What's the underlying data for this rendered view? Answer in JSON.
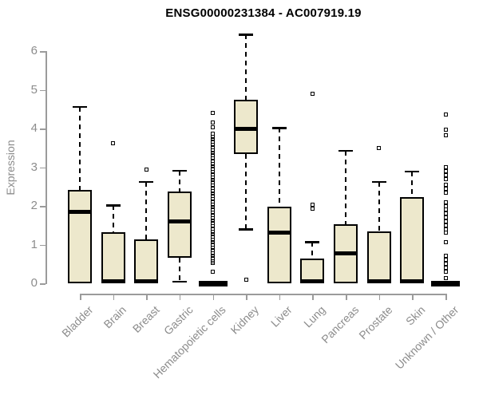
{
  "title": "ENSG00000231384 - AC007919.19",
  "colors": {
    "box_fill": "#EDE8CC",
    "box_border": "#000000",
    "median": "#000000",
    "whisker": "#000000",
    "axis_line": "#9b9b9b",
    "tick_label": "#8c8c8c",
    "title": "#000000",
    "background": "#ffffff"
  },
  "chart_data": {
    "type": "boxplot",
    "title": "ENSG00000231384 - AC007919.19",
    "xlabel": "",
    "ylabel": "Expression",
    "ylim": [
      0,
      6.5
    ],
    "yticks": [
      0,
      1,
      2,
      3,
      4,
      5,
      6
    ],
    "grid": false,
    "legend": false,
    "categories": [
      "Bladder",
      "Brain",
      "Breast",
      "Gastric",
      "Hematopoietic cells",
      "Kidney",
      "Liver",
      "Lung",
      "Pancreas",
      "Prostate",
      "Skin",
      "Unknown / Other"
    ],
    "series": [
      {
        "name": "Bladder",
        "whisker_low": 0,
        "q1": 0,
        "median": 1.84,
        "q3": 2.41,
        "whisker_high": 4.56,
        "outliers": []
      },
      {
        "name": "Brain",
        "whisker_low": 0,
        "q1": 0,
        "median": 0.05,
        "q3": 1.32,
        "whisker_high": 2.02,
        "outliers": [
          3.61
        ]
      },
      {
        "name": "Breast",
        "whisker_low": 0,
        "q1": 0,
        "median": 0.05,
        "q3": 1.13,
        "whisker_high": 2.62,
        "outliers": [
          2.93
        ]
      },
      {
        "name": "Gastric",
        "whisker_low": 0.05,
        "q1": 0.66,
        "median": 1.59,
        "q3": 2.37,
        "whisker_high": 2.91,
        "outliers": []
      },
      {
        "name": "Hematopoietic cells",
        "whisker_low": 0,
        "q1": 0,
        "median": 0,
        "q3": 0,
        "whisker_high": 0,
        "outliers": [
          4.4,
          4.16,
          4.04,
          3.86,
          3.79,
          3.72,
          3.65,
          3.58,
          3.51,
          3.44,
          3.37,
          3.3,
          3.23,
          3.16,
          3.09,
          3.02,
          2.95,
          2.88,
          2.81,
          2.74,
          2.67,
          2.6,
          2.53,
          2.46,
          2.39,
          2.32,
          2.25,
          2.18,
          2.11,
          2.04,
          1.97,
          1.9,
          1.83,
          1.76,
          1.69,
          1.62,
          1.55,
          1.48,
          1.41,
          1.34,
          1.27,
          1.2,
          1.13,
          1.06,
          0.99,
          0.92,
          0.85,
          0.78,
          0.71,
          0.64,
          0.57,
          0.52,
          0.29
        ]
      },
      {
        "name": "Kidney",
        "whisker_low": 1.4,
        "q1": 3.34,
        "median": 4.0,
        "q3": 4.74,
        "whisker_high": 6.43,
        "outliers": [
          0.1
        ]
      },
      {
        "name": "Liver",
        "whisker_low": 0,
        "q1": 0,
        "median": 1.3,
        "q3": 1.98,
        "whisker_high": 4.02,
        "outliers": []
      },
      {
        "name": "Lung",
        "whisker_low": 0,
        "q1": 0,
        "median": 0.05,
        "q3": 0.64,
        "whisker_high": 1.07,
        "outliers": [
          4.89,
          2.04,
          1.92
        ]
      },
      {
        "name": "Pancreas",
        "whisker_low": 0,
        "q1": 0,
        "median": 0.78,
        "q3": 1.53,
        "whisker_high": 3.43,
        "outliers": []
      },
      {
        "name": "Prostate",
        "whisker_low": 0,
        "q1": 0,
        "median": 0.05,
        "q3": 1.34,
        "whisker_high": 2.62,
        "outliers": [
          3.5
        ]
      },
      {
        "name": "Skin",
        "whisker_low": 0,
        "q1": 0,
        "median": 0.05,
        "q3": 2.23,
        "whisker_high": 2.89,
        "outliers": []
      },
      {
        "name": "Unknown / Other",
        "whisker_low": 0,
        "q1": 0,
        "median": 0,
        "q3": 0,
        "whisker_high": 0,
        "outliers": [
          4.37,
          3.96,
          3.82,
          3.0,
          2.9,
          2.8,
          2.7,
          2.55,
          2.45,
          2.35,
          2.1,
          2.0,
          1.9,
          1.8,
          1.7,
          1.6,
          1.5,
          1.4,
          1.3,
          1.07,
          0.72,
          0.6,
          0.5,
          0.4,
          0.3,
          0.14
        ]
      }
    ]
  }
}
